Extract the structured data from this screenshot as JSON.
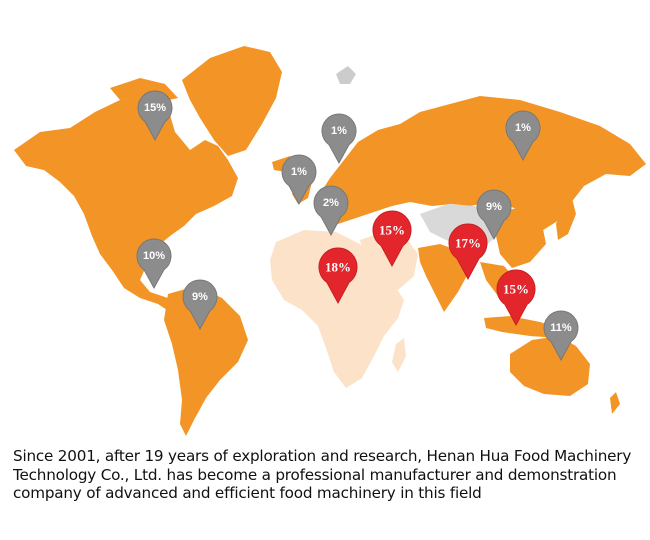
{
  "colors": {
    "land_primary": "#f39526",
    "land_light": "#fbe2c8",
    "land_gray": "#d9d9d9",
    "pin_gray": "#8c8c8c",
    "pin_red": "#e3262b"
  },
  "markers": [
    {
      "id": "canada",
      "label": "15%",
      "style": "gray"
    },
    {
      "id": "greenland-east",
      "label": "1%",
      "style": "gray"
    },
    {
      "id": "russia",
      "label": "1%",
      "style": "gray"
    },
    {
      "id": "uk",
      "label": "1%",
      "style": "gray"
    },
    {
      "id": "europe",
      "label": "2%",
      "style": "gray"
    },
    {
      "id": "china",
      "label": "9%",
      "style": "gray"
    },
    {
      "id": "middle-east",
      "label": "15%",
      "style": "red"
    },
    {
      "id": "south-asia",
      "label": "17%",
      "style": "red"
    },
    {
      "id": "north-africa",
      "label": "18%",
      "style": "red"
    },
    {
      "id": "southeast-asia",
      "label": "15%",
      "style": "red"
    },
    {
      "id": "usa",
      "label": "10%",
      "style": "gray"
    },
    {
      "id": "south-america",
      "label": "9%",
      "style": "gray"
    },
    {
      "id": "australia",
      "label": "11%",
      "style": "gray"
    }
  ],
  "caption": {
    "text": "Since 2001, after 19 years of exploration and research, Henan Hua Food Machinery Technology Co., Ltd. has become a professional manufacturer and demonstration company of advanced and efficient food machinery in this field"
  }
}
